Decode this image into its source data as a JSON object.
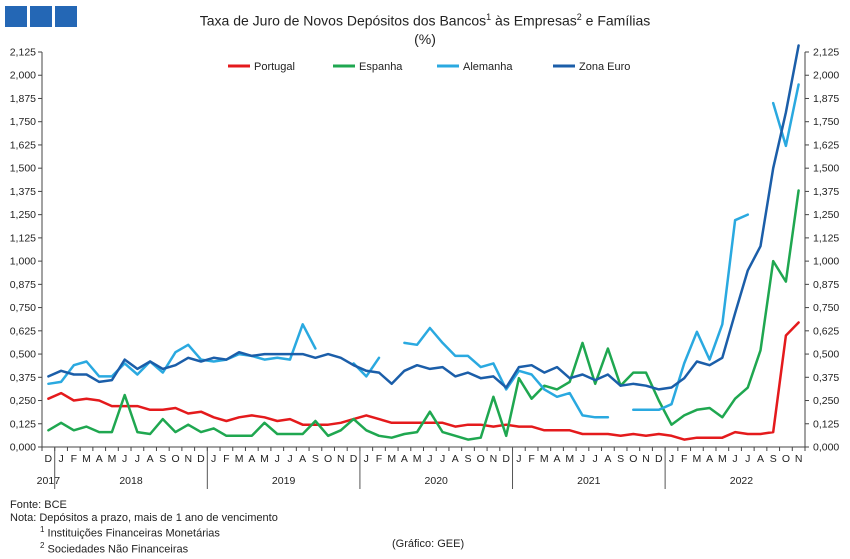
{
  "header": {
    "title_part1": "Taxa de Juro de Novos Depósitos dos Bancos",
    "sup1": "1",
    "title_part2": " às Empresas",
    "sup2": "2",
    "title_part3": " e Famílias",
    "subtitle": "(%)"
  },
  "footer": {
    "source": "Fonte: BCE",
    "note": "Nota: Depósitos a prazo, mais de 1 ano de vencimento",
    "note1_sup": "1",
    "note1": " Instituições Financeiras Monetárias",
    "note2_sup": "2",
    "note2": " Sociedades Não Financeiras",
    "credit": "(Gráfico: GEE)"
  },
  "chart_data": {
    "type": "line",
    "ylim": [
      0,
      2.125
    ],
    "yticks": [
      "0,000",
      "0,125",
      "0,250",
      "0,375",
      "0,500",
      "0,625",
      "0,750",
      "0,875",
      "1,000",
      "1,125",
      "1,250",
      "1,375",
      "1,500",
      "1,625",
      "1,750",
      "1,875",
      "2,000",
      "2,125"
    ],
    "months": [
      "D",
      "J",
      "F",
      "M",
      "A",
      "M",
      "J",
      "J",
      "A",
      "S",
      "O",
      "N",
      "D",
      "J",
      "F",
      "M",
      "A",
      "M",
      "J",
      "J",
      "A",
      "S",
      "O",
      "N",
      "D",
      "J",
      "F",
      "M",
      "A",
      "M",
      "J",
      "J",
      "A",
      "S",
      "O",
      "N",
      "D",
      "J",
      "F",
      "M",
      "A",
      "M",
      "J",
      "J",
      "A",
      "S",
      "O",
      "N",
      "D",
      "J",
      "F",
      "M",
      "A",
      "M",
      "J",
      "J",
      "A",
      "S",
      "O",
      "N"
    ],
    "years": [
      {
        "label": "2017",
        "month_index": 0
      },
      {
        "label": "2018",
        "month_index": 6.5
      },
      {
        "label": "2019",
        "month_index": 18.5
      },
      {
        "label": "2020",
        "month_index": 30.5
      },
      {
        "label": "2021",
        "month_index": 42.5
      },
      {
        "label": "2022",
        "month_index": 54.5
      }
    ],
    "year_separators": [
      0.5,
      12.5,
      24.5,
      36.5,
      48.5
    ],
    "series": [
      {
        "name": "Portugal",
        "color": "#e41a1c",
        "values": [
          0.26,
          0.29,
          0.25,
          0.26,
          0.25,
          0.22,
          0.22,
          0.22,
          0.2,
          0.2,
          0.21,
          0.18,
          0.19,
          0.16,
          0.14,
          0.16,
          0.17,
          0.16,
          0.14,
          0.15,
          0.12,
          0.12,
          0.12,
          0.13,
          0.15,
          0.17,
          0.15,
          0.13,
          0.13,
          0.13,
          0.13,
          0.13,
          0.11,
          0.12,
          0.12,
          0.11,
          0.12,
          0.11,
          0.11,
          0.09,
          0.09,
          0.09,
          0.07,
          0.07,
          0.07,
          0.06,
          0.07,
          0.06,
          0.07,
          0.06,
          0.04,
          0.05,
          0.05,
          0.05,
          0.08,
          0.07,
          0.07,
          0.08,
          0.6,
          0.67
        ]
      },
      {
        "name": "Espanha",
        "color": "#1fa750",
        "values": [
          0.09,
          0.13,
          0.09,
          0.11,
          0.08,
          0.08,
          0.28,
          0.08,
          0.07,
          0.15,
          0.08,
          0.12,
          0.08,
          0.1,
          0.06,
          0.06,
          0.06,
          0.13,
          0.07,
          0.07,
          0.07,
          0.14,
          0.06,
          0.09,
          0.15,
          0.09,
          0.06,
          0.05,
          0.07,
          0.08,
          0.19,
          0.08,
          0.06,
          0.04,
          0.05,
          0.27,
          0.06,
          0.37,
          0.26,
          0.33,
          0.31,
          0.35,
          0.56,
          0.34,
          0.53,
          0.33,
          0.4,
          0.4,
          0.25,
          0.12,
          0.17,
          0.2,
          0.21,
          0.16,
          0.26,
          0.32,
          0.52,
          1.0,
          0.89,
          1.38
        ]
      },
      {
        "name": "Alemanha",
        "color": "#2aa9e0",
        "values": [
          0.34,
          0.35,
          0.44,
          0.46,
          0.38,
          0.38,
          0.45,
          0.39,
          0.46,
          0.4,
          0.51,
          0.55,
          0.47,
          0.46,
          0.47,
          0.5,
          0.49,
          0.47,
          0.48,
          0.47,
          0.66,
          0.53,
          null,
          null,
          0.45,
          0.38,
          0.48,
          null,
          0.56,
          0.55,
          0.64,
          0.56,
          0.49,
          0.49,
          0.43,
          0.45,
          0.31,
          0.41,
          0.39,
          0.31,
          0.27,
          0.29,
          0.17,
          0.16,
          0.16,
          null,
          0.2,
          0.2,
          0.2,
          0.23,
          0.45,
          0.62,
          0.47,
          0.66,
          1.22,
          1.25,
          null,
          1.85,
          1.62,
          1.95
        ]
      },
      {
        "name": "Zona Euro",
        "color": "#1b5ea9",
        "values": [
          0.38,
          0.41,
          0.39,
          0.39,
          0.35,
          0.36,
          0.47,
          0.42,
          0.46,
          0.42,
          0.44,
          0.48,
          0.46,
          0.48,
          0.47,
          0.51,
          0.49,
          0.5,
          0.5,
          0.5,
          0.5,
          0.48,
          0.5,
          0.48,
          0.44,
          0.41,
          0.4,
          0.34,
          0.41,
          0.44,
          0.42,
          0.43,
          0.38,
          0.4,
          0.37,
          0.38,
          0.32,
          0.43,
          0.44,
          0.4,
          0.43,
          0.37,
          0.39,
          0.36,
          0.39,
          0.33,
          0.34,
          0.33,
          0.31,
          0.32,
          0.37,
          0.46,
          0.44,
          0.48,
          0.72,
          0.95,
          1.08,
          1.5,
          1.8,
          2.16
        ]
      }
    ]
  }
}
